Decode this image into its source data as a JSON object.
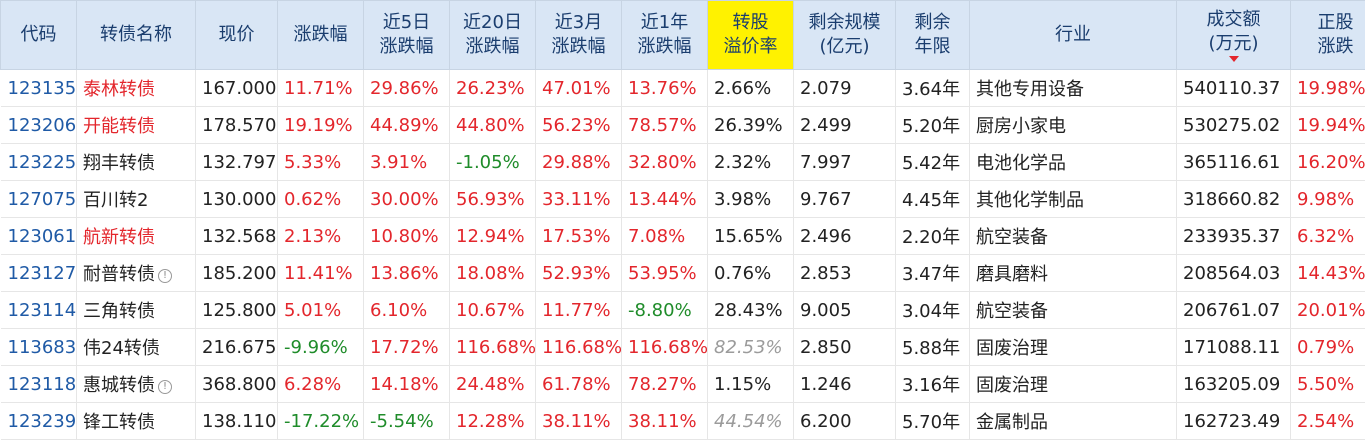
{
  "colors": {
    "header_bg": "#d9e6f5",
    "header_text": "#1a3d6e",
    "highlight_header": "#fff200",
    "up": "#e3262c",
    "down": "#1f8c2a",
    "code": "#1f5aa6",
    "muted": "#9b9b9b"
  },
  "columns": [
    [
      "代码"
    ],
    [
      "转债名称"
    ],
    [
      "现价"
    ],
    [
      "涨跌幅"
    ],
    [
      "近5日",
      "涨跌幅"
    ],
    [
      "近20日",
      "涨跌幅"
    ],
    [
      "近3月",
      "涨跌幅"
    ],
    [
      "近1年",
      "涨跌幅"
    ],
    [
      "转股",
      "溢价率"
    ],
    [
      "剩余规模",
      "(亿元)"
    ],
    [
      "剩余",
      "年限"
    ],
    [
      "行业"
    ],
    [
      "成交额",
      "(万元)"
    ],
    [
      "正股",
      "涨跌"
    ]
  ],
  "sort_indicator": "sort-desc-arrow-icon",
  "rows": [
    {
      "code": "123135",
      "name": "泰林转债",
      "name_red": true,
      "info": false,
      "price": "167.000",
      "chg": "11.71%",
      "chg5": "29.86%",
      "chg20": "26.23%",
      "chg3m": "47.01%",
      "chg1y": "13.76%",
      "premium": "2.66%",
      "premium_muted": false,
      "size": "2.079",
      "years": "3.64年",
      "industry": "其他专用设备",
      "turnover": "540110.37",
      "stock_chg": "19.98%"
    },
    {
      "code": "123206",
      "name": "开能转债",
      "name_red": true,
      "info": false,
      "price": "178.570",
      "chg": "19.19%",
      "chg5": "44.89%",
      "chg20": "44.80%",
      "chg3m": "56.23%",
      "chg1y": "78.57%",
      "premium": "26.39%",
      "premium_muted": false,
      "size": "2.499",
      "years": "5.20年",
      "industry": "厨房小家电",
      "turnover": "530275.02",
      "stock_chg": "19.94%"
    },
    {
      "code": "123225",
      "name": "翔丰转债",
      "name_red": false,
      "info": false,
      "price": "132.797",
      "chg": "5.33%",
      "chg5": "3.91%",
      "chg20": "-1.05%",
      "chg3m": "29.88%",
      "chg1y": "32.80%",
      "premium": "2.32%",
      "premium_muted": false,
      "size": "7.997",
      "years": "5.42年",
      "industry": "电池化学品",
      "turnover": "365116.61",
      "stock_chg": "16.20%"
    },
    {
      "code": "127075",
      "name": "百川转2",
      "name_red": false,
      "info": false,
      "price": "130.000",
      "chg": "0.62%",
      "chg5": "30.00%",
      "chg20": "56.93%",
      "chg3m": "33.11%",
      "chg1y": "13.44%",
      "premium": "3.98%",
      "premium_muted": false,
      "size": "9.767",
      "years": "4.45年",
      "industry": "其他化学制品",
      "turnover": "318660.82",
      "stock_chg": "9.98%"
    },
    {
      "code": "123061",
      "name": "航新转债",
      "name_red": true,
      "info": false,
      "price": "132.568",
      "chg": "2.13%",
      "chg5": "10.80%",
      "chg20": "12.94%",
      "chg3m": "17.53%",
      "chg1y": "7.08%",
      "premium": "15.65%",
      "premium_muted": false,
      "size": "2.496",
      "years": "2.20年",
      "industry": "航空装备",
      "turnover": "233935.37",
      "stock_chg": "6.32%"
    },
    {
      "code": "123127",
      "name": "耐普转债",
      "name_red": false,
      "info": true,
      "price": "185.200",
      "chg": "11.41%",
      "chg5": "13.86%",
      "chg20": "18.08%",
      "chg3m": "52.93%",
      "chg1y": "53.95%",
      "premium": "0.76%",
      "premium_muted": false,
      "size": "2.853",
      "years": "3.47年",
      "industry": "磨具磨料",
      "turnover": "208564.03",
      "stock_chg": "14.43%"
    },
    {
      "code": "123114",
      "name": "三角转债",
      "name_red": false,
      "info": false,
      "price": "125.800",
      "chg": "5.01%",
      "chg5": "6.10%",
      "chg20": "10.67%",
      "chg3m": "11.77%",
      "chg1y": "-8.80%",
      "premium": "28.43%",
      "premium_muted": false,
      "size": "9.005",
      "years": "3.04年",
      "industry": "航空装备",
      "turnover": "206761.07",
      "stock_chg": "20.01%"
    },
    {
      "code": "113683",
      "name": "伟24转债",
      "name_red": false,
      "info": false,
      "price": "216.675",
      "chg": "-9.96%",
      "chg5": "17.72%",
      "chg20": "116.68%",
      "chg3m": "116.68%",
      "chg1y": "116.68%",
      "premium": "82.53%",
      "premium_muted": true,
      "size": "2.850",
      "years": "5.88年",
      "industry": "固废治理",
      "turnover": "171088.11",
      "stock_chg": "0.79%"
    },
    {
      "code": "123118",
      "name": "惠城转债",
      "name_red": false,
      "info": true,
      "price": "368.800",
      "chg": "6.28%",
      "chg5": "14.18%",
      "chg20": "24.48%",
      "chg3m": "61.78%",
      "chg1y": "78.27%",
      "premium": "1.15%",
      "premium_muted": false,
      "size": "1.246",
      "years": "3.16年",
      "industry": "固废治理",
      "turnover": "163205.09",
      "stock_chg": "5.50%"
    },
    {
      "code": "123239",
      "name": "锋工转债",
      "name_red": false,
      "info": false,
      "price": "138.110",
      "chg": "-17.22%",
      "chg5": "-5.54%",
      "chg20": "12.28%",
      "chg3m": "38.11%",
      "chg1y": "38.11%",
      "premium": "44.54%",
      "premium_muted": true,
      "size": "6.200",
      "years": "5.70年",
      "industry": "金属制品",
      "turnover": "162723.49",
      "stock_chg": "2.54%"
    }
  ]
}
